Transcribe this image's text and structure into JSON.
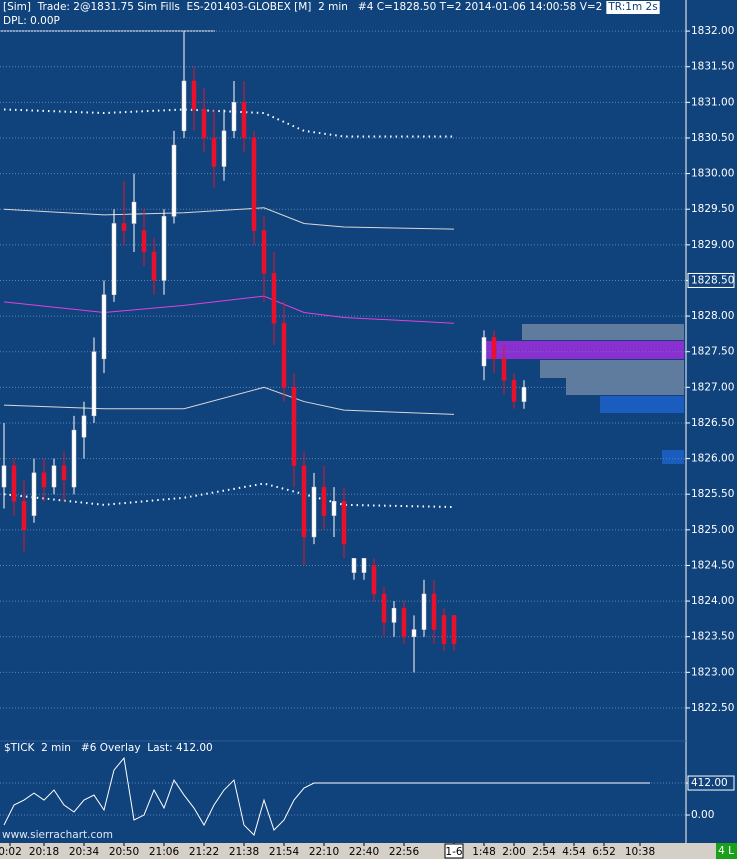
{
  "header": {
    "text": "[Sim]  Trade: 2@1831.75 Sim Fills  ES-201403-GLOBEX [M]  2 min   #4 C=1828.50 T=2 2014-01-06 14:00:58 V=2",
    "badge": "TR:1m 2s",
    "subtitle": "DPL: 0.00P"
  },
  "watermark": "www.sierrachart.com",
  "status": "4 L",
  "chart_data": [
    {
      "type": "candlestick",
      "x": [
        0,
        1,
        2,
        3,
        4,
        5,
        6,
        7,
        8,
        9,
        10,
        11,
        12,
        13,
        14,
        15,
        16,
        17,
        18,
        19,
        20,
        21,
        22,
        23,
        24,
        25,
        26,
        27,
        28,
        29,
        30,
        31,
        32,
        33,
        34,
        35,
        36,
        37,
        38,
        39,
        40,
        41,
        42,
        43,
        44,
        45,
        48,
        49,
        50,
        51,
        52
      ],
      "open": [
        1825.6,
        1825.9,
        1825.4,
        1825.2,
        1825.8,
        1825.6,
        1825.9,
        1825.6,
        1826.3,
        1826.6,
        1827.4,
        1828.3,
        1829.3,
        1829.3,
        1829.2,
        1828.9,
        1828.5,
        1829.4,
        1830.6,
        1831.3,
        1830.9,
        1830.5,
        1830.1,
        1830.6,
        1831.0,
        1830.5,
        1829.2,
        1828.6,
        1827.9,
        1827.0,
        1825.9,
        1824.9,
        1825.6,
        1825.2,
        1825.4,
        1824.4,
        1824.4,
        1824.5,
        1824.1,
        1823.7,
        1823.9,
        1823.5,
        1823.6,
        1824.1,
        1823.8,
        1823.8,
        1827.3,
        1827.7,
        1827.4,
        1827.1,
        1826.8
      ],
      "high": [
        1826.5,
        1826.0,
        1825.7,
        1826.0,
        1826.0,
        1826.0,
        1826.1,
        1826.6,
        1826.8,
        1827.7,
        1828.5,
        1829.5,
        1829.9,
        1830.0,
        1829.5,
        1829.1,
        1829.5,
        1830.6,
        1832.0,
        1831.5,
        1831.2,
        1830.9,
        1830.9,
        1831.3,
        1831.3,
        1830.6,
        1829.4,
        1828.9,
        1828.2,
        1827.2,
        1826.1,
        1825.8,
        1825.9,
        1825.6,
        1825.6,
        1824.6,
        1824.6,
        1824.6,
        1824.2,
        1824.0,
        1824.0,
        1823.8,
        1824.3,
        1824.3,
        1823.9,
        1823.8,
        1827.8,
        1827.8,
        1827.6,
        1827.2,
        1827.1
      ],
      "low": [
        1825.3,
        1825.2,
        1824.7,
        1825.1,
        1825.4,
        1825.5,
        1825.4,
        1825.5,
        1826.0,
        1826.5,
        1827.2,
        1828.2,
        1829.0,
        1828.9,
        1828.7,
        1828.3,
        1828.3,
        1829.3,
        1830.5,
        1830.6,
        1830.3,
        1829.8,
        1829.9,
        1830.5,
        1830.3,
        1829.0,
        1828.2,
        1827.6,
        1826.8,
        1825.6,
        1824.5,
        1824.8,
        1825.0,
        1824.9,
        1824.6,
        1824.3,
        1824.3,
        1824.0,
        1823.5,
        1823.5,
        1823.4,
        1823.0,
        1823.5,
        1823.4,
        1823.3,
        1823.3,
        1827.1,
        1827.2,
        1826.9,
        1826.7,
        1826.7
      ],
      "close": [
        1825.9,
        1825.4,
        1825.0,
        1825.8,
        1825.6,
        1825.9,
        1825.7,
        1826.4,
        1826.6,
        1827.5,
        1828.3,
        1829.3,
        1829.2,
        1829.6,
        1828.9,
        1828.5,
        1829.4,
        1830.4,
        1831.3,
        1830.9,
        1830.5,
        1830.1,
        1830.6,
        1831.0,
        1830.5,
        1829.2,
        1828.6,
        1827.9,
        1827.0,
        1825.9,
        1824.9,
        1825.6,
        1825.2,
        1825.4,
        1824.8,
        1824.6,
        1824.6,
        1824.1,
        1823.7,
        1823.9,
        1823.5,
        1823.6,
        1824.1,
        1823.6,
        1823.4,
        1823.4,
        1827.7,
        1827.4,
        1827.1,
        1826.8,
        1827.0
      ],
      "up_color": "#ffffff",
      "down_color": "#e8102a",
      "series": [
        {
          "x": [
            0,
            10,
            18,
            26,
            30,
            34,
            45
          ],
          "values": [
            1830.9,
            1830.85,
            1830.9,
            1830.85,
            1830.6,
            1830.52,
            1830.52
          ],
          "color": "#ffffff",
          "style": "dotted"
        },
        {
          "x": [
            0,
            10,
            18,
            26,
            30,
            34,
            45
          ],
          "values": [
            1829.5,
            1829.42,
            1829.45,
            1829.52,
            1829.3,
            1829.25,
            1829.22
          ],
          "color": "#d8d8d8",
          "style": "solid"
        },
        {
          "x": [
            0,
            10,
            18,
            26,
            30,
            34,
            45
          ],
          "values": [
            1828.2,
            1828.05,
            1828.15,
            1828.28,
            1828.05,
            1827.98,
            1827.9
          ],
          "color": "#e040e0",
          "style": "solid"
        },
        {
          "x": [
            0,
            10,
            18,
            26,
            30,
            34,
            45
          ],
          "values": [
            1826.75,
            1826.7,
            1826.7,
            1827.0,
            1826.8,
            1826.68,
            1826.62
          ],
          "color": "#d8d8d8",
          "style": "solid"
        },
        {
          "x": [
            0,
            10,
            18,
            26,
            30,
            34,
            45
          ],
          "values": [
            1825.5,
            1825.35,
            1825.45,
            1825.65,
            1825.5,
            1825.35,
            1825.32
          ],
          "color": "#ffffff",
          "style": "dotted"
        }
      ],
      "xlim": [
        0,
        68
      ],
      "ylim": [
        1822.05,
        1832.24
      ],
      "yticks": [
        {
          "value": 1832,
          "label": "1832.00"
        },
        {
          "value": 1831.5,
          "label": "1831.50"
        },
        {
          "value": 1831,
          "label": "1831.00"
        },
        {
          "value": 1830.5,
          "label": "1830.50"
        },
        {
          "value": 1830,
          "label": "1830.00"
        },
        {
          "value": 1829.5,
          "label": "1829.50"
        },
        {
          "value": 1829,
          "label": "1829.00"
        },
        {
          "value": 1828.5,
          "label": "1828.50"
        },
        {
          "value": 1828,
          "label": "1828.00"
        },
        {
          "value": 1827.5,
          "label": "1827.50"
        },
        {
          "value": 1827,
          "label": "1827.00"
        },
        {
          "value": 1826.5,
          "label": "1826.50"
        },
        {
          "value": 1826,
          "label": "1826.00"
        },
        {
          "value": 1825.5,
          "label": "1825.50"
        },
        {
          "value": 1825,
          "label": "1825.00"
        },
        {
          "value": 1824.5,
          "label": "1824.50"
        },
        {
          "value": 1824,
          "label": "1824.00"
        },
        {
          "value": 1823.5,
          "label": "1823.50"
        },
        {
          "value": 1823,
          "label": "1823.00"
        },
        {
          "value": 1822.5,
          "label": "1822.50"
        }
      ],
      "highlight_tick": 1828.5,
      "xticks": [
        {
          "value": 0.6,
          "label": "0:02"
        },
        {
          "value": 4,
          "label": "20:18"
        },
        {
          "value": 8,
          "label": "20:34"
        },
        {
          "value": 12,
          "label": "20:50"
        },
        {
          "value": 16,
          "label": "21:06"
        },
        {
          "value": 20,
          "label": "21:22"
        },
        {
          "value": 24,
          "label": "21:38"
        },
        {
          "value": 28,
          "label": "21:54"
        },
        {
          "value": 32,
          "label": "22:10"
        },
        {
          "value": 36,
          "label": "22:40"
        },
        {
          "value": 40,
          "label": "22:56"
        },
        {
          "value": 45,
          "label": "1-6"
        },
        {
          "value": 48,
          "label": "1:48"
        },
        {
          "value": 51,
          "label": "2:00"
        },
        {
          "value": 54,
          "label": "2:54"
        },
        {
          "value": 57,
          "label": "4:54"
        },
        {
          "value": 60,
          "label": "6:52"
        },
        {
          "value": 63.6,
          "label": "10:38"
        }
      ],
      "boxed_xtick": 45,
      "grid": true
    },
    {
      "type": "line",
      "title": "$TICK  2 min   #6 Overlay  Last: 412.00",
      "x": [
        0,
        1,
        2,
        3,
        4,
        5,
        6,
        7,
        8,
        9,
        10,
        11,
        12,
        13,
        14,
        15,
        16,
        17,
        18,
        19,
        20,
        21,
        22,
        23,
        24,
        25,
        26,
        27,
        28,
        29,
        30,
        31,
        64.6
      ],
      "values": [
        -129,
        129,
        193,
        283,
        193,
        322,
        129,
        39,
        193,
        257,
        64,
        579,
        734,
        -64,
        0,
        322,
        90,
        450,
        257,
        90,
        -129,
        129,
        322,
        450,
        -129,
        -257,
        193,
        -193,
        -64,
        193,
        348,
        412,
        412
      ],
      "color": "#ffffff",
      "xlim": [
        0,
        68
      ],
      "ylim": [
        -360,
        966
      ],
      "yticks": [
        {
          "value": 412,
          "label": "412.00"
        },
        {
          "value": 0,
          "label": "0.00"
        }
      ],
      "highlight_tick": 412,
      "grid": true
    }
  ]
}
